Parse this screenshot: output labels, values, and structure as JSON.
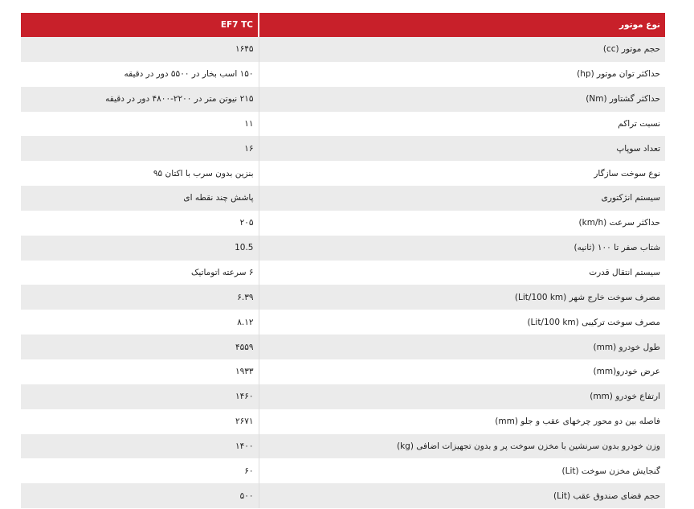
{
  "header": {
    "label": "نوع موتور",
    "value": "EF7 TC"
  },
  "colors": {
    "header_bg": "#c8202a",
    "row_alt_bg": "#ebebeb"
  },
  "rows": [
    {
      "label": "حجم موتور (cc)",
      "value": "۱۶۴۵"
    },
    {
      "label": "حداکثر توان موتور (hp)",
      "value": "۱۵۰ اسب بخار در ۵۵۰۰ دور در دقیقه"
    },
    {
      "label": "حداکثر گشتاور (Nm)",
      "value": "۲۱۵ نیوتن متر در ۲۲۰۰-۴۸۰۰ دور در دقیقه"
    },
    {
      "label": "نسبت تراکم",
      "value": "۱۱"
    },
    {
      "label": "تعداد سوپاپ",
      "value": "۱۶"
    },
    {
      "label": "نوع سوخت سازگار",
      "value": "بنزین بدون سرب با اکتان ۹۵"
    },
    {
      "label": "سیستم انژکتوری",
      "value": "پاشش چند نقطه ای"
    },
    {
      "label": "حداکثر سرعت (km/h)",
      "value": "۲۰۵"
    },
    {
      "label": "شتاب صفر تا ۱۰۰ (ثانیه)",
      "value": "10.5"
    },
    {
      "label": "سیستم انتقال قدرت",
      "value": "۶ سرعته اتوماتیک"
    },
    {
      "label": "مصرف سوخت خارج شهر (Lit/100 km)",
      "value": "۶.۳۹"
    },
    {
      "label": "مصرف سوخت ترکیبی (Lit/100 km)",
      "value": "۸.۱۲"
    },
    {
      "label": "طول خودرو (mm)",
      "value": "۴۵۵۹"
    },
    {
      "label": "عرض خودرو(mm)",
      "value": "۱۹۳۳"
    },
    {
      "label": "ارتفاع خودرو (mm)",
      "value": "۱۴۶۰"
    },
    {
      "label": "فاصله بین دو محور چرخهای عقب و جلو (mm)",
      "value": "۲۶۷۱"
    },
    {
      "label": "وزن خودرو بدون سرنشین با مخزن سوخت پر و بدون تجهیزات اضافی (kg)",
      "value": "۱۴۰۰"
    },
    {
      "label": "گنجایش مخزن سوخت (Lit)",
      "value": "۶۰"
    },
    {
      "label": "حجم فضای صندوق عقب (Lit)",
      "value": "۵۰۰"
    }
  ]
}
